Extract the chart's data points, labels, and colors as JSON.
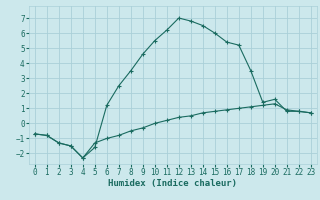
{
  "xlabel": "Humidex (Indice chaleur)",
  "xlim": [
    -0.5,
    23.5
  ],
  "ylim": [
    -2.7,
    7.8
  ],
  "xticks": [
    0,
    1,
    2,
    3,
    4,
    5,
    6,
    7,
    8,
    9,
    10,
    11,
    12,
    13,
    14,
    15,
    16,
    17,
    18,
    19,
    20,
    21,
    22,
    23
  ],
  "yticks": [
    -2,
    -1,
    0,
    1,
    2,
    3,
    4,
    5,
    6,
    7
  ],
  "background_color": "#cce8ec",
  "grid_color": "#aad0d8",
  "line_color": "#1a6b60",
  "series1_x": [
    0,
    1,
    2,
    3,
    4,
    5,
    6,
    7,
    8,
    9,
    10,
    11,
    12,
    13,
    14,
    15,
    16,
    17,
    18,
    19,
    20,
    21,
    22,
    23
  ],
  "series1_y": [
    -0.7,
    -0.8,
    -1.3,
    -1.5,
    -2.3,
    -1.6,
    1.2,
    2.5,
    3.5,
    4.6,
    5.5,
    6.2,
    7.0,
    6.8,
    6.5,
    6.0,
    5.4,
    5.2,
    3.5,
    1.4,
    1.6,
    0.8,
    0.8,
    0.7
  ],
  "series2_x": [
    0,
    1,
    2,
    3,
    4,
    5,
    6,
    7,
    8,
    9,
    10,
    11,
    12,
    13,
    14,
    15,
    16,
    17,
    18,
    19,
    20,
    21,
    22,
    23
  ],
  "series2_y": [
    -0.7,
    -0.8,
    -1.3,
    -1.5,
    -2.3,
    -1.3,
    -1.0,
    -0.8,
    -0.5,
    -0.3,
    0.0,
    0.2,
    0.4,
    0.5,
    0.7,
    0.8,
    0.9,
    1.0,
    1.1,
    1.2,
    1.3,
    0.9,
    0.8,
    0.7
  ],
  "tick_fontsize": 5.5,
  "xlabel_fontsize": 6.5
}
